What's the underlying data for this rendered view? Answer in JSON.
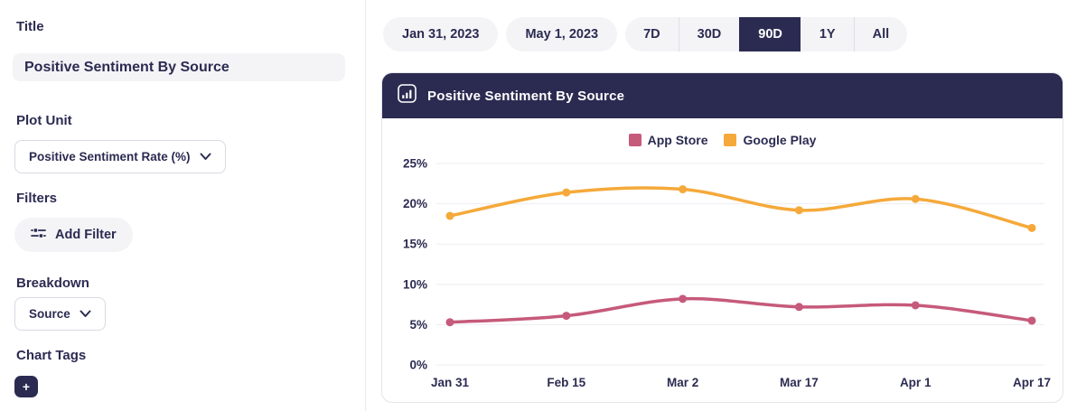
{
  "sidebar": {
    "title_label": "Title",
    "title_value": "Positive Sentiment By Source",
    "plot_unit_label": "Plot Unit",
    "plot_unit_value": "Positive Sentiment Rate (%)",
    "filters_label": "Filters",
    "add_filter_label": "Add Filter",
    "breakdown_label": "Breakdown",
    "breakdown_value": "Source",
    "chart_tags_label": "Chart Tags",
    "add_tag_label": "+"
  },
  "toolbar": {
    "start_date": "Jan 31, 2023",
    "end_date": "May 1, 2023",
    "ranges": [
      {
        "label": "7D",
        "active": false
      },
      {
        "label": "30D",
        "active": false
      },
      {
        "label": "90D",
        "active": true
      },
      {
        "label": "1Y",
        "active": false
      },
      {
        "label": "All",
        "active": false
      }
    ]
  },
  "chart_card": {
    "title": "Positive Sentiment By Source"
  },
  "chart_data": {
    "type": "line",
    "title": "Positive Sentiment By Source",
    "x": [
      "Jan 31",
      "Feb 15",
      "Mar 2",
      "Mar 17",
      "Apr 1",
      "Apr 17"
    ],
    "series": [
      {
        "name": "App Store",
        "color": "#c65a7b",
        "values": [
          5.3,
          6.1,
          8.2,
          7.2,
          7.4,
          5.5
        ]
      },
      {
        "name": "Google Play",
        "color": "#f5a93a",
        "values": [
          18.5,
          21.4,
          21.8,
          19.2,
          20.6,
          17.0
        ]
      }
    ],
    "xlabel": "",
    "ylabel": "Positive Sentiment Rate (%)",
    "ylim": [
      0,
      25
    ],
    "yticks": [
      "0%",
      "5%",
      "10%",
      "15%",
      "20%",
      "25%"
    ],
    "grid": true,
    "legend_position": "top-center"
  },
  "colors": {
    "navy": "#2b2b52",
    "pill_bg": "#f4f4f7",
    "card_border": "#e4e4ea",
    "grid_line": "#ededf2",
    "app_store": "#c65a7b",
    "google_play": "#f5a93a"
  }
}
